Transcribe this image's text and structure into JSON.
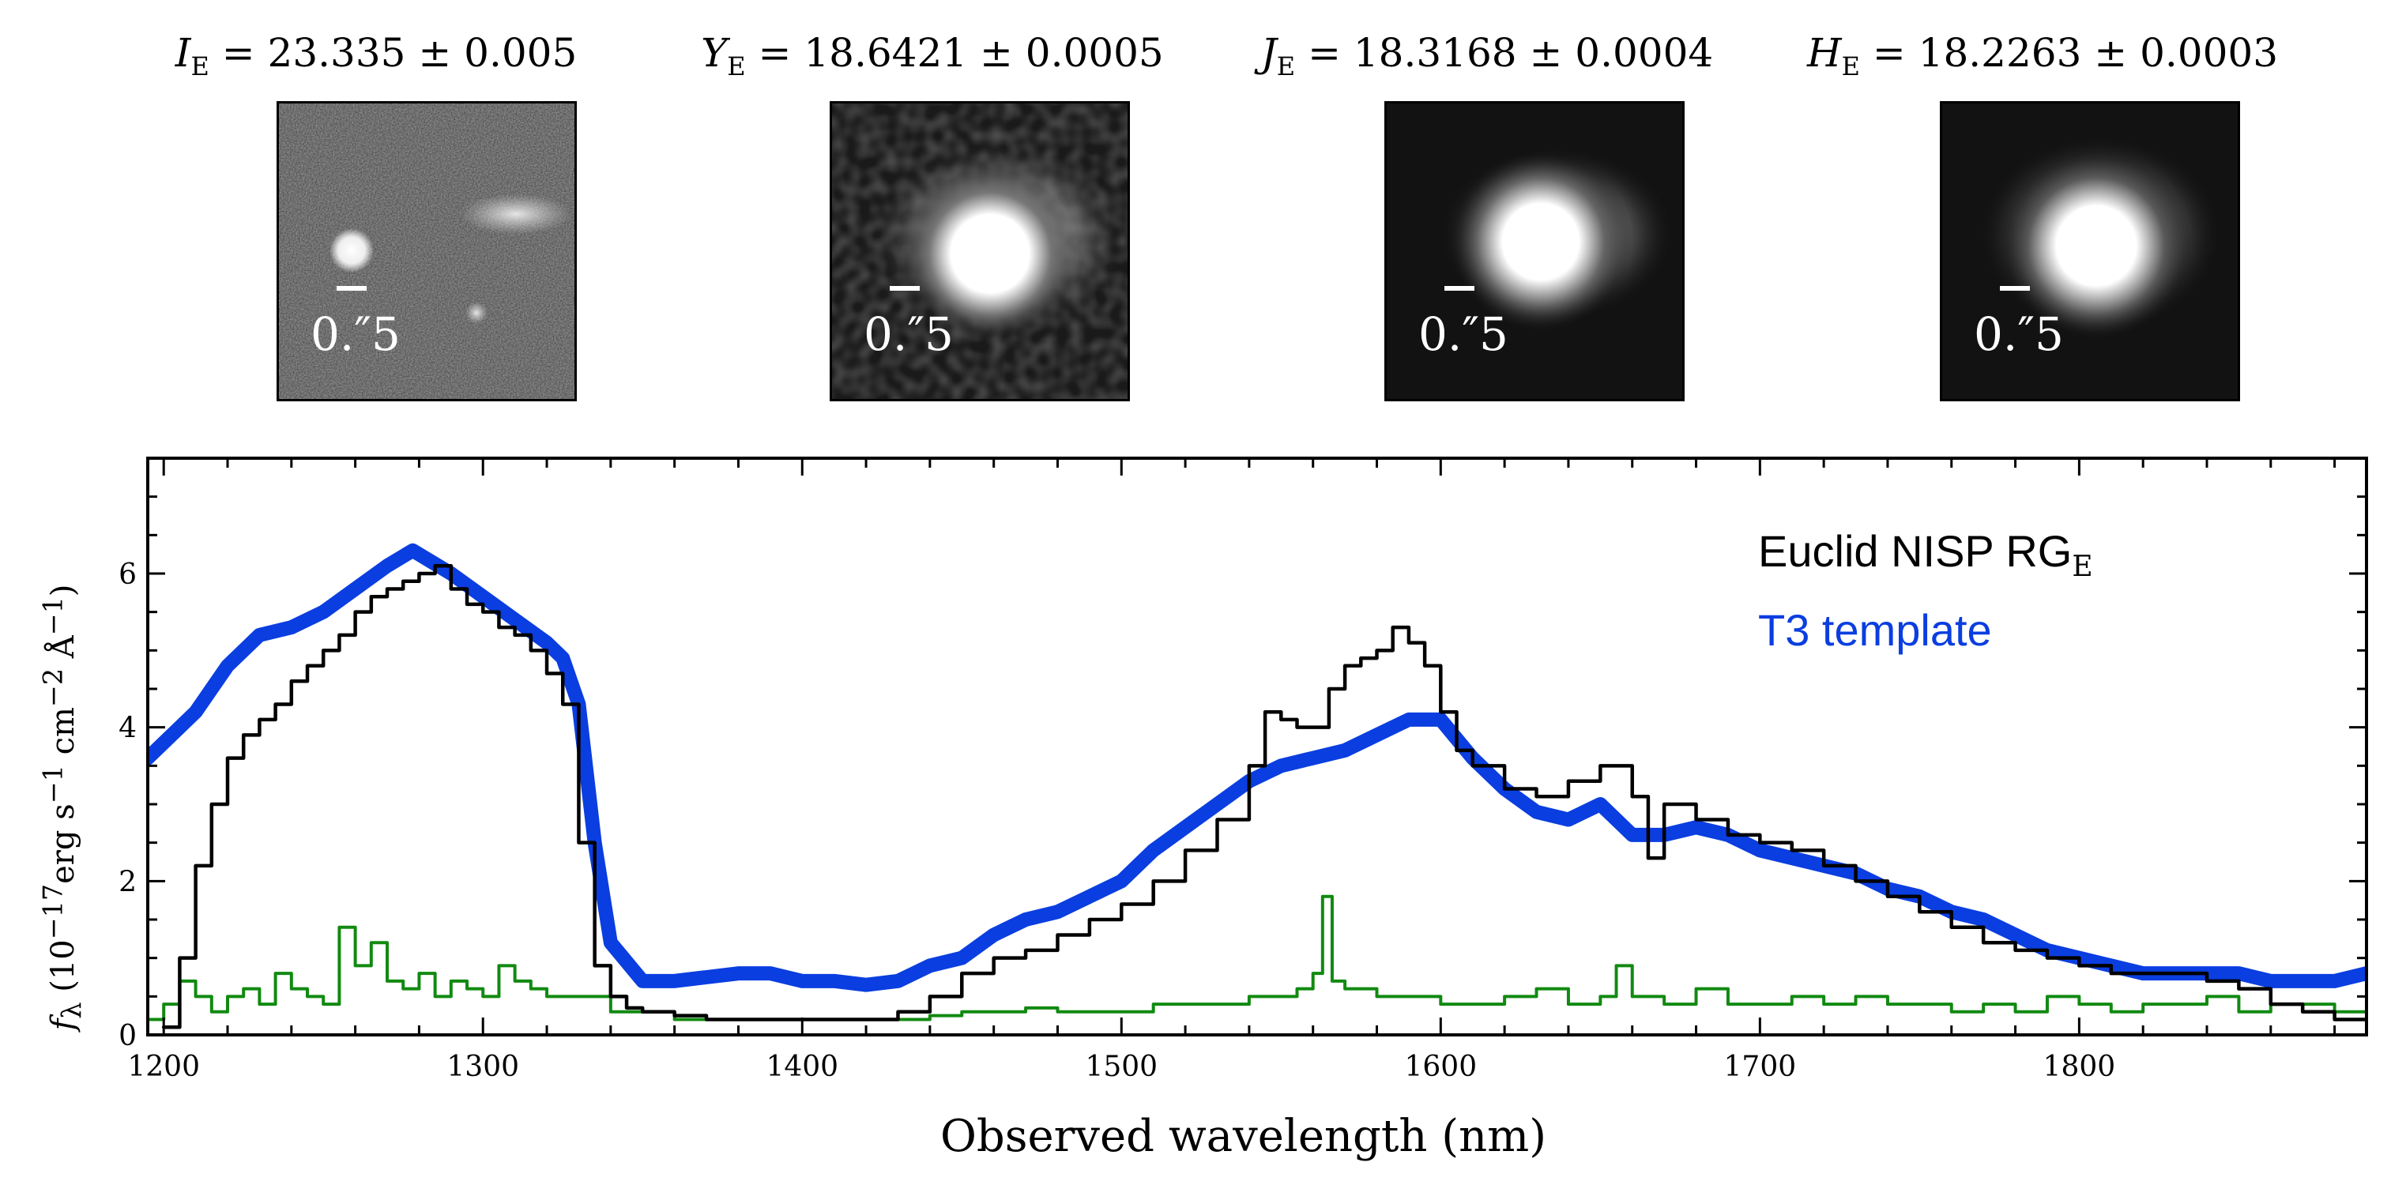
{
  "cutouts": [
    {
      "band_symbol": "I",
      "band_sub": "E",
      "value_text": "= 23.335 ± 0.005",
      "scale_label": "0.″5"
    },
    {
      "band_symbol": "Y",
      "band_sub": "E",
      "value_text": "= 18.6421 ± 0.0005",
      "scale_label": "0.″5"
    },
    {
      "band_symbol": "J",
      "band_sub": "E",
      "value_text": "= 18.3168 ± 0.0004",
      "scale_label": "0.″5"
    },
    {
      "band_symbol": "H",
      "band_sub": "E",
      "value_text": "= 18.2263 ± 0.0003",
      "scale_label": "0.″5"
    }
  ],
  "legend": {
    "spectrum_label": "Euclid NISP RG",
    "spectrum_sub": "E",
    "template_label": "T3 template"
  },
  "colors": {
    "spectrum": "#000000",
    "template": "#0a3ee0",
    "noise": "#118a11"
  },
  "chart_data": {
    "type": "line",
    "xlabel": "Observed wavelength (nm)",
    "ylabel": "f_λ (10^−17 erg s^−1 cm^−2 Å^−1)",
    "xlim": [
      1195,
      1890
    ],
    "ylim": [
      0,
      7.5
    ],
    "xticks": [
      1200,
      1300,
      1400,
      1500,
      1600,
      1700,
      1800
    ],
    "yticks": [
      0,
      2,
      4,
      6
    ],
    "series": [
      {
        "name": "Euclid NISP RG_E",
        "color": "#000000",
        "style": "step",
        "x": [
          1200,
          1205,
          1210,
          1215,
          1220,
          1225,
          1230,
          1235,
          1240,
          1245,
          1250,
          1255,
          1260,
          1265,
          1270,
          1275,
          1280,
          1285,
          1290,
          1295,
          1300,
          1305,
          1310,
          1315,
          1320,
          1325,
          1330,
          1335,
          1340,
          1345,
          1350,
          1360,
          1370,
          1380,
          1390,
          1400,
          1410,
          1420,
          1430,
          1440,
          1450,
          1460,
          1470,
          1480,
          1490,
          1500,
          1510,
          1520,
          1530,
          1540,
          1545,
          1550,
          1555,
          1560,
          1565,
          1570,
          1575,
          1580,
          1585,
          1590,
          1595,
          1600,
          1605,
          1610,
          1620,
          1630,
          1640,
          1650,
          1660,
          1665,
          1670,
          1680,
          1690,
          1700,
          1710,
          1720,
          1730,
          1740,
          1750,
          1760,
          1770,
          1780,
          1790,
          1800,
          1810,
          1820,
          1830,
          1840,
          1850,
          1860,
          1870,
          1880,
          1890
        ],
        "y": [
          0.1,
          1.0,
          2.2,
          3.0,
          3.6,
          3.9,
          4.1,
          4.3,
          4.6,
          4.8,
          5.0,
          5.2,
          5.5,
          5.7,
          5.8,
          5.9,
          6.0,
          6.1,
          5.8,
          5.6,
          5.5,
          5.3,
          5.2,
          5.0,
          4.7,
          4.3,
          2.5,
          0.9,
          0.5,
          0.35,
          0.3,
          0.25,
          0.2,
          0.2,
          0.2,
          0.2,
          0.2,
          0.2,
          0.3,
          0.5,
          0.8,
          1.0,
          1.1,
          1.3,
          1.5,
          1.7,
          2.0,
          2.4,
          2.8,
          3.5,
          4.2,
          4.1,
          4.0,
          4.0,
          4.5,
          4.8,
          4.9,
          5.0,
          5.3,
          5.1,
          4.8,
          4.2,
          3.7,
          3.5,
          3.2,
          3.1,
          3.3,
          3.5,
          3.1,
          2.3,
          3.0,
          2.8,
          2.6,
          2.5,
          2.4,
          2.2,
          2.0,
          1.8,
          1.6,
          1.4,
          1.2,
          1.1,
          1.0,
          0.9,
          0.8,
          0.8,
          0.8,
          0.7,
          0.6,
          0.4,
          0.3,
          0.2,
          0.2
        ]
      },
      {
        "name": "T3 template",
        "color": "#0a3ee0",
        "style": "line",
        "x": [
          1195,
          1210,
          1220,
          1230,
          1240,
          1250,
          1260,
          1270,
          1278,
          1290,
          1300,
          1310,
          1320,
          1325,
          1330,
          1335,
          1340,
          1350,
          1360,
          1370,
          1380,
          1390,
          1400,
          1410,
          1420,
          1430,
          1440,
          1450,
          1460,
          1470,
          1480,
          1490,
          1500,
          1510,
          1520,
          1530,
          1540,
          1550,
          1560,
          1570,
          1580,
          1590,
          1600,
          1610,
          1620,
          1630,
          1640,
          1650,
          1660,
          1670,
          1680,
          1690,
          1700,
          1710,
          1720,
          1730,
          1740,
          1750,
          1760,
          1770,
          1780,
          1790,
          1800,
          1810,
          1820,
          1830,
          1840,
          1850,
          1860,
          1870,
          1880,
          1890
        ],
        "y": [
          3.6,
          4.2,
          4.8,
          5.2,
          5.3,
          5.5,
          5.8,
          6.1,
          6.3,
          6.0,
          5.7,
          5.4,
          5.1,
          4.9,
          4.3,
          2.5,
          1.2,
          0.7,
          0.7,
          0.75,
          0.8,
          0.8,
          0.7,
          0.7,
          0.65,
          0.7,
          0.9,
          1.0,
          1.3,
          1.5,
          1.6,
          1.8,
          2.0,
          2.4,
          2.7,
          3.0,
          3.3,
          3.5,
          3.6,
          3.7,
          3.9,
          4.1,
          4.1,
          3.6,
          3.2,
          2.9,
          2.8,
          3.0,
          2.6,
          2.6,
          2.7,
          2.6,
          2.4,
          2.3,
          2.2,
          2.1,
          1.9,
          1.8,
          1.6,
          1.5,
          1.3,
          1.1,
          1.0,
          0.9,
          0.8,
          0.8,
          0.8,
          0.8,
          0.7,
          0.7,
          0.7,
          0.8
        ]
      },
      {
        "name": "noise",
        "color": "#118a11",
        "style": "step",
        "x": [
          1195,
          1200,
          1205,
          1210,
          1215,
          1220,
          1225,
          1230,
          1235,
          1240,
          1245,
          1250,
          1255,
          1260,
          1265,
          1270,
          1275,
          1280,
          1285,
          1290,
          1295,
          1300,
          1305,
          1310,
          1315,
          1320,
          1330,
          1340,
          1350,
          1360,
          1370,
          1380,
          1390,
          1400,
          1410,
          1420,
          1430,
          1440,
          1450,
          1460,
          1470,
          1480,
          1490,
          1500,
          1510,
          1520,
          1530,
          1540,
          1550,
          1555,
          1560,
          1563,
          1566,
          1570,
          1580,
          1590,
          1600,
          1610,
          1620,
          1630,
          1640,
          1650,
          1655,
          1660,
          1670,
          1680,
          1690,
          1700,
          1710,
          1720,
          1730,
          1740,
          1750,
          1760,
          1770,
          1780,
          1790,
          1800,
          1810,
          1820,
          1830,
          1840,
          1850,
          1860,
          1870,
          1880,
          1890
        ],
        "y": [
          0.2,
          0.4,
          0.7,
          0.5,
          0.3,
          0.5,
          0.6,
          0.4,
          0.8,
          0.6,
          0.5,
          0.4,
          1.4,
          0.9,
          1.2,
          0.7,
          0.6,
          0.8,
          0.5,
          0.7,
          0.6,
          0.5,
          0.9,
          0.7,
          0.6,
          0.5,
          0.5,
          0.3,
          0.3,
          0.2,
          0.2,
          0.2,
          0.2,
          0.2,
          0.2,
          0.2,
          0.2,
          0.25,
          0.3,
          0.3,
          0.35,
          0.3,
          0.3,
          0.3,
          0.4,
          0.4,
          0.4,
          0.5,
          0.5,
          0.6,
          0.8,
          1.8,
          0.7,
          0.6,
          0.5,
          0.5,
          0.4,
          0.4,
          0.5,
          0.6,
          0.4,
          0.5,
          0.9,
          0.5,
          0.4,
          0.6,
          0.4,
          0.4,
          0.5,
          0.4,
          0.5,
          0.4,
          0.4,
          0.3,
          0.4,
          0.3,
          0.5,
          0.4,
          0.3,
          0.4,
          0.4,
          0.5,
          0.3,
          0.4,
          0.4,
          0.3,
          0.2
        ]
      }
    ]
  }
}
